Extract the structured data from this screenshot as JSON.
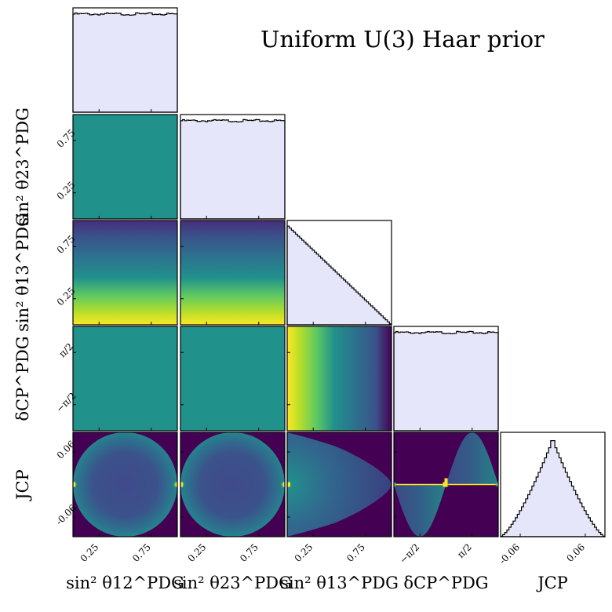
{
  "title": "Uniform U(3) Haar prior",
  "colors": {
    "hist_fill": "#e6e6fa",
    "hist_edge": "#000000",
    "colormap": "viridis",
    "colormap_stops": [
      "#440154",
      "#3b528b",
      "#21918c",
      "#5ec962",
      "#fde725"
    ]
  },
  "labels": {
    "s12": "sin² θ12^PDG",
    "s23": "sin² θ23^PDG",
    "s13": "sin² θ13^PDG",
    "dcp": "δCP^PDG",
    "jcp": "JCP"
  },
  "tick_labels": {
    "sin2": [
      "0.25",
      "0.75"
    ],
    "dcp": [
      "−π/2",
      "π/2"
    ],
    "jcp": [
      "-0.06",
      "0.06"
    ]
  },
  "chart_data": {
    "type": "corner",
    "title": "Uniform U(3) Haar prior",
    "parameters": [
      "sin2_theta12",
      "sin2_theta23",
      "sin2_theta13",
      "delta_CP",
      "J_CP"
    ],
    "ranges": {
      "sin2_theta12": [
        0,
        1
      ],
      "sin2_theta23": [
        0,
        1
      ],
      "sin2_theta13": [
        0,
        1
      ],
      "delta_CP": [
        -3.1416,
        3.1416
      ],
      "J_CP": [
        -0.0962,
        0.0962
      ]
    },
    "ticks": {
      "sin2_theta12": [
        0.25,
        0.75
      ],
      "sin2_theta23": [
        0.25,
        0.75
      ],
      "sin2_theta13": [
        0.25,
        0.75
      ],
      "delta_CP": [
        -1.5708,
        1.5708
      ],
      "J_CP": [
        -0.06,
        0.06
      ]
    },
    "marginals": {
      "sin2_theta12": "uniform",
      "sin2_theta23": "uniform",
      "sin2_theta13": "linearly decreasing from max at 0 to 0 at 1",
      "delta_CP": "uniform",
      "J_CP": "triangular peaked near 0, zero at ±0.096"
    },
    "pair_densities": [
      {
        "x": "sin2_theta12",
        "y": "sin2_theta23",
        "description": "uniform"
      },
      {
        "x": "sin2_theta12",
        "y": "sin2_theta13",
        "description": "density decreases with sin2_theta13"
      },
      {
        "x": "sin2_theta23",
        "y": "sin2_theta13",
        "description": "density decreases with sin2_theta13"
      },
      {
        "x": "sin2_theta12",
        "y": "delta_CP",
        "description": "uniform"
      },
      {
        "x": "sin2_theta23",
        "y": "delta_CP",
        "description": "uniform"
      },
      {
        "x": "sin2_theta13",
        "y": "delta_CP",
        "description": "density decreases with sin2_theta13"
      },
      {
        "x": "sin2_theta12",
        "y": "J_CP",
        "description": "elliptical envelope, peaks at J=0 near sin2_theta12=0 and 1"
      },
      {
        "x": "sin2_theta23",
        "y": "J_CP",
        "description": "elliptical envelope, peaks at J=0 near sin2_theta23=0 and 1"
      },
      {
        "x": "sin2_theta13",
        "y": "J_CP",
        "description": "lens-shaped envelope narrowing to J=0 at sin2_theta13=1"
      },
      {
        "x": "delta_CP",
        "y": "J_CP",
        "description": "|J| bounded by sin(delta_CP); peaks at delta = -pi, 0, pi along J=0"
      }
    ]
  }
}
